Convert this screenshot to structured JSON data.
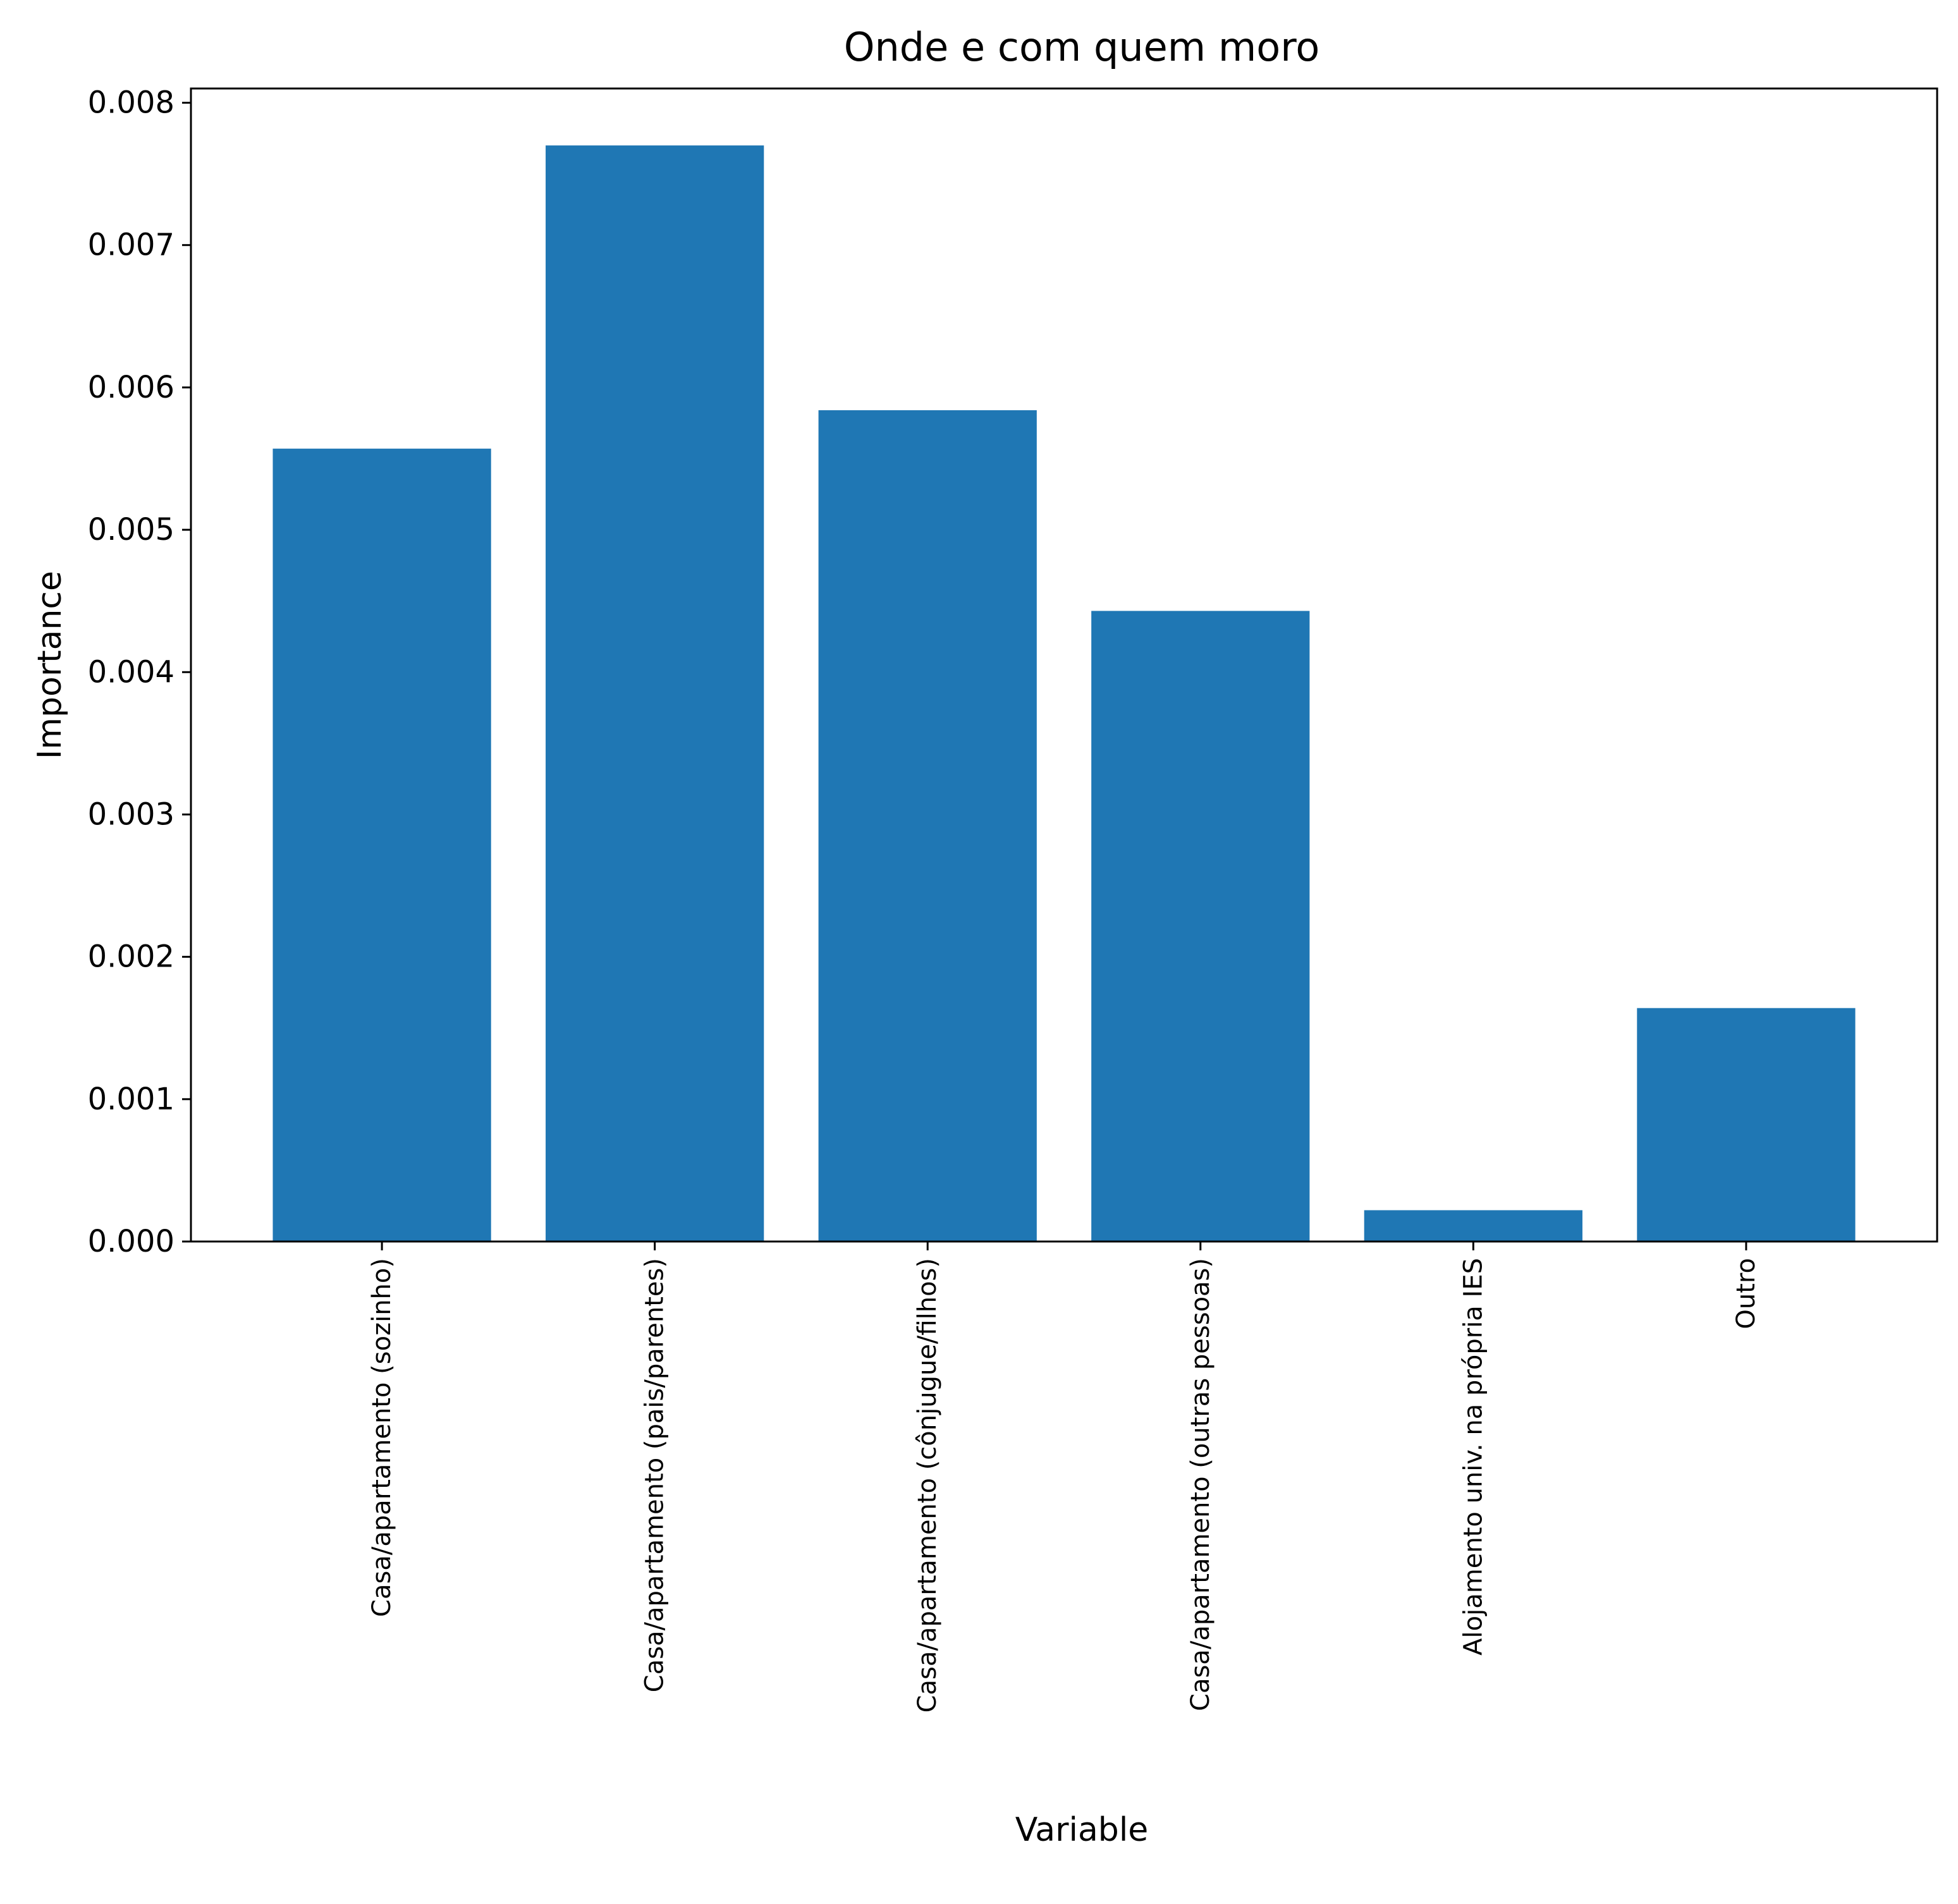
{
  "chart_data": {
    "type": "bar",
    "title": "Onde e com quem moro",
    "xlabel": "Variable",
    "ylabel": "Importance",
    "categories": [
      "Casa/apartamento (sozinho)",
      "Casa/apartamento (pais/parentes)",
      "Casa/apartamento (cônjugue/filhos)",
      "Casa/apartamento (outras pessoas)",
      "Alojamento univ. na própria IES",
      "Outro"
    ],
    "values": [
      0.00557,
      0.0077,
      0.00584,
      0.00443,
      0.00022,
      0.00164
    ],
    "ylim": [
      0,
      0.0081
    ],
    "yticks": [
      "0.000",
      "0.001",
      "0.002",
      "0.003",
      "0.004",
      "0.005",
      "0.006",
      "0.007",
      "0.008"
    ],
    "ytick_values": [
      0,
      0.001,
      0.002,
      0.003,
      0.004,
      0.005,
      0.006,
      0.007,
      0.008
    ],
    "bar_color": "#1f77b4",
    "grid": false,
    "legend": "none"
  }
}
